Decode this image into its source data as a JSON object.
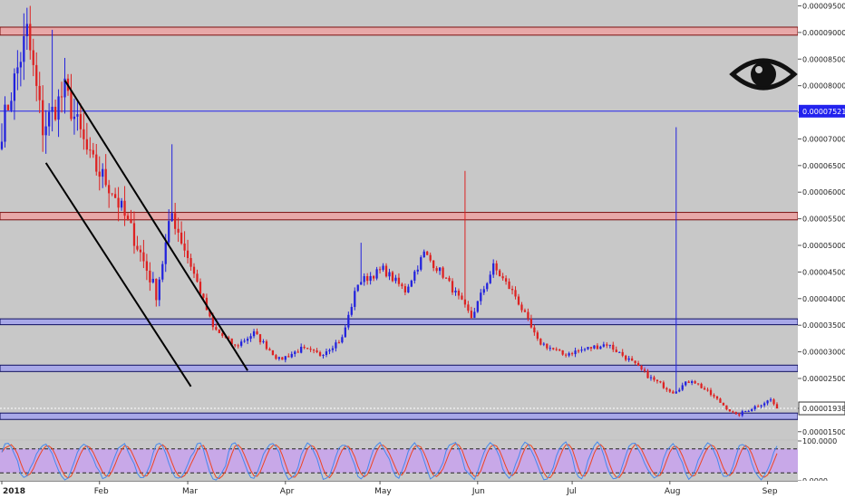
{
  "chart_data": [
    {
      "type": "candlestick",
      "title": "",
      "xlabel": "",
      "ylabel": "",
      "ylim": [
        1.36e-05,
        9.61e-05
      ],
      "x_ticks": [
        "2018",
        "Feb",
        "Mar",
        "Apr",
        "May",
        "Jun",
        "Jul",
        "Aug",
        "Sep"
      ],
      "y_ticks": [
        "0.00009500",
        "0.00009000",
        "0.00008500",
        "0.00008000",
        "0.00007500",
        "0.00007000",
        "0.00006500",
        "0.00006000",
        "0.00005500",
        "0.00005000",
        "0.00004500",
        "0.00004000",
        "0.00003500",
        "0.00003000",
        "0.00002500",
        "0.00001938",
        "0.00001500"
      ],
      "y_tick_values": [
        9.5e-05,
        9e-05,
        8.5e-05,
        8e-05,
        7.5e-05,
        7e-05,
        6.5e-05,
        6e-05,
        5.5e-05,
        5e-05,
        4.5e-05,
        4e-05,
        3.5e-05,
        3e-05,
        2.5e-05,
        1.938e-05,
        1.5e-05
      ],
      "grid": false,
      "colors": {
        "background": "#c8c8c8",
        "up": "#2222dd",
        "down": "#dd2222",
        "resistance_zone": "#e8a8a8",
        "support_zone": "#a8a8e8",
        "trend_line": "#000000"
      },
      "price_markers": [
        {
          "label": "0.00007521",
          "value": 7.521e-05,
          "color": "#2222ee"
        },
        {
          "label": "0.00001938",
          "value": 1.938e-05,
          "color": "#ffffff"
        }
      ],
      "zones": [
        {
          "kind": "resistance",
          "low": 8.95e-05,
          "high": 9.1e-05
        },
        {
          "kind": "resistance",
          "low": 5.48e-05,
          "high": 5.62e-05
        },
        {
          "kind": "support",
          "low": 3.51e-05,
          "high": 3.62e-05
        },
        {
          "kind": "support",
          "low": 2.63e-05,
          "high": 2.75e-05
        },
        {
          "kind": "support",
          "low": 1.73e-05,
          "high": 1.85e-05
        }
      ],
      "channel_lines": [
        {
          "from": {
            "date": "2018-01-21",
            "value": 8.1e-05
          },
          "to": {
            "date": "2018-03-20",
            "value": 2.65e-05
          }
        },
        {
          "from": {
            "date": "2018-01-15",
            "value": 6.55e-05
          },
          "to": {
            "date": "2018-03-02",
            "value": 2.35e-05
          }
        }
      ],
      "anchors": [
        [
          "2018-01-01",
          7.2e-05
        ],
        [
          "2018-01-09",
          9e-05
        ],
        [
          "2018-01-14",
          7.2e-05
        ],
        [
          "2018-01-21",
          7.9e-05
        ],
        [
          "2018-01-29",
          6.6e-05
        ],
        [
          "2018-02-05",
          6.05e-05
        ],
        [
          "2018-02-12",
          5.15e-05
        ],
        [
          "2018-02-19",
          4.1e-05
        ],
        [
          "2018-02-24",
          5.6e-05
        ],
        [
          "2018-03-04",
          4.3e-05
        ],
        [
          "2018-03-09",
          3.45e-05
        ],
        [
          "2018-03-16",
          3.1e-05
        ],
        [
          "2018-03-22",
          3.35e-05
        ],
        [
          "2018-03-30",
          2.85e-05
        ],
        [
          "2018-04-06",
          3.05e-05
        ],
        [
          "2018-04-12",
          2.95e-05
        ],
        [
          "2018-04-19",
          3.25e-05
        ],
        [
          "2018-04-24",
          4.3e-05
        ],
        [
          "2018-05-02",
          4.55e-05
        ],
        [
          "2018-05-09",
          4.15e-05
        ],
        [
          "2018-05-15",
          4.85e-05
        ],
        [
          "2018-05-21",
          4.45e-05
        ],
        [
          "2018-05-30",
          3.65e-05
        ],
        [
          "2018-06-06",
          4.6e-05
        ],
        [
          "2018-06-13",
          4.05e-05
        ],
        [
          "2018-06-20",
          3.2e-05
        ],
        [
          "2018-06-28",
          2.95e-05
        ],
        [
          "2018-07-05",
          3.05e-05
        ],
        [
          "2018-07-12",
          3.15e-05
        ],
        [
          "2018-07-19",
          2.85e-05
        ],
        [
          "2018-07-26",
          2.5e-05
        ],
        [
          "2018-08-02",
          2.25e-05
        ],
        [
          "2018-08-08",
          2.48e-05
        ],
        [
          "2018-08-15",
          2.15e-05
        ],
        [
          "2018-08-22",
          1.8e-05
        ],
        [
          "2018-08-29",
          2e-05
        ],
        [
          "2018-09-02",
          2.1e-05
        ],
        [
          "2018-09-04",
          1.938e-05
        ]
      ],
      "spikes": [
        {
          "date": "2018-01-10",
          "high": 9.5e-05
        },
        {
          "date": "2018-01-17",
          "high": 9.05e-05
        },
        {
          "date": "2018-02-24",
          "high": 6.9e-05
        },
        {
          "date": "2018-04-25",
          "high": 5.05e-05
        },
        {
          "date": "2018-05-28",
          "high": 6.4e-05
        },
        {
          "date": "2018-08-03",
          "high": 7.22e-05
        }
      ],
      "end_date": "2018-09-04"
    },
    {
      "type": "line",
      "indicator": "stochastic",
      "ylim": [
        0,
        100
      ],
      "y_ticks": [
        "100.0000",
        "0.0000"
      ],
      "y_tick_values": [
        100,
        0
      ],
      "band": [
        20,
        80
      ],
      "colors": {
        "band": "#c8a8e8",
        "k_line": "#4488ee",
        "d_line": "#ee4422"
      }
    }
  ]
}
